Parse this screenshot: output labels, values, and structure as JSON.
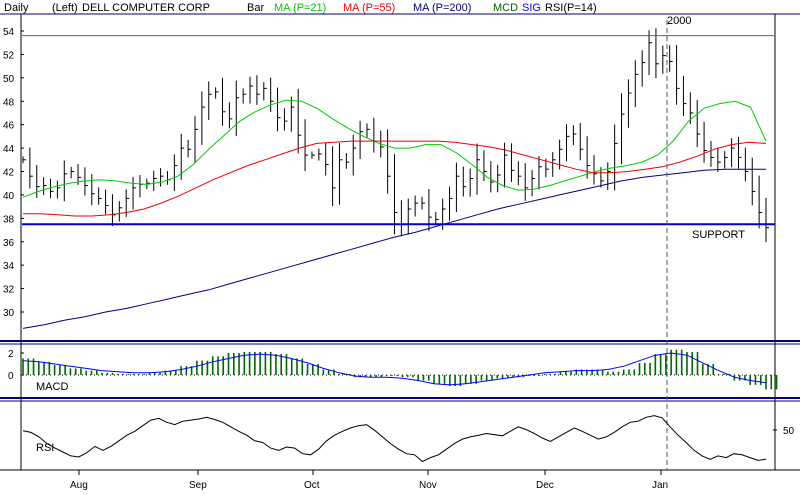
{
  "header": {
    "period": "Daily",
    "scale_side": "(Left)",
    "company": "DELL COMPUTER CORP",
    "bar_label": "Bar",
    "ma21_label": "MA (P=21)",
    "ma55_label": "MA (P=55)",
    "ma200_label": "MA (P=200)",
    "macd_label": "MCD",
    "sig_label": "SIG",
    "rsi_label": "RSI(P=14)"
  },
  "colors": {
    "bars": "#000000",
    "ma21": "#00cc00",
    "ma55": "#ee0000",
    "ma200": "#000080",
    "support": "#0000cc",
    "macd_hist": "#006600",
    "sig": "#0000ff",
    "rsi": "#000000",
    "panel_line": "#000080"
  },
  "chart_data": [
    {
      "type": "bar",
      "panel": "price",
      "ylim": [
        28,
        54
      ],
      "yticks": [
        30,
        32,
        34,
        36,
        38,
        40,
        42,
        44,
        46,
        48,
        50,
        52,
        54
      ],
      "xticks": [
        "Aug",
        "Sep",
        "Oct",
        "Nov",
        "Dec",
        "Jan"
      ],
      "year_marker": "2000",
      "annotations": [
        {
          "text": "SUPPORT",
          "value": 37.5
        }
      ],
      "top_line": 53.6,
      "closes": [
        43.0,
        41.6,
        40.7,
        40.8,
        40.3,
        40.6,
        41.8,
        42.0,
        41.5,
        40.8,
        40.1,
        39.7,
        39.1,
        38.3,
        38.9,
        39.7,
        40.6,
        40.9,
        41.0,
        41.4,
        41.6,
        41.3,
        42.5,
        44.0,
        43.9,
        45.6,
        47.5,
        48.6,
        48.8,
        47.1,
        46.5,
        48.3,
        48.6,
        49.3,
        48.6,
        49.1,
        48.0,
        46.6,
        46.3,
        47.5,
        45.1,
        43.4,
        43.4,
        43.5,
        42.6,
        40.6,
        43.0,
        42.8,
        44.0,
        45.4,
        45.6,
        44.6,
        44.1,
        41.6,
        38.5,
        37.5,
        38.8,
        39.3,
        39.3,
        38.1,
        37.9,
        38.8,
        39.7,
        41.6,
        40.7,
        41.4,
        43.0,
        42.0,
        41.1,
        41.7,
        43.4,
        42.1,
        41.6,
        40.6,
        41.4,
        42.4,
        42.2,
        43.0,
        43.9,
        45.0,
        45.2,
        43.9,
        42.5,
        41.8,
        41.2,
        42.0,
        44.4,
        46.9,
        48.7,
        50.3,
        51.3,
        53.0,
        51.2,
        51.9,
        51.4,
        49.1,
        47.8,
        47.0,
        45.2,
        43.8,
        43.2,
        42.8,
        43.2,
        44.0,
        43.2,
        42.0,
        40.3,
        38.5,
        37.2
      ],
      "series": [
        {
          "name": "MA (P=21)",
          "values": [
            39.8,
            40.3,
            40.7,
            41.0,
            41.2,
            41.3,
            41.2,
            41.0,
            40.9,
            41.1,
            41.6,
            42.6,
            43.9,
            45.1,
            46.3,
            47.1,
            47.7,
            48.1,
            48.0,
            47.4,
            46.5,
            45.7,
            45.0,
            44.4,
            44.0,
            44.0,
            44.3,
            44.3,
            43.6,
            42.6,
            41.5,
            40.8,
            40.4,
            40.5,
            40.8,
            41.2,
            41.6,
            42.0,
            42.3,
            42.5,
            42.8,
            43.4,
            44.6,
            46.3,
            47.4,
            47.8,
            48.0,
            47.5,
            44.6
          ]
        },
        {
          "name": "MA (P=55)",
          "values": [
            38.4,
            38.4,
            38.3,
            38.2,
            38.2,
            38.3,
            38.5,
            38.8,
            39.3,
            39.9,
            40.6,
            41.3,
            41.9,
            42.5,
            43.0,
            43.5,
            44.0,
            44.4,
            44.5,
            44.6,
            44.6,
            44.6,
            44.6,
            44.6,
            44.6,
            44.5,
            44.3,
            44.1,
            43.8,
            43.4,
            43.0,
            42.6,
            42.2,
            41.9,
            41.9,
            42.0,
            42.2,
            42.4,
            42.8,
            43.3,
            43.9,
            44.3,
            44.5,
            44.4
          ]
        },
        {
          "name": "MA (P=200)",
          "values": [
            28.6,
            28.9,
            29.3,
            29.6,
            30.0,
            30.3,
            30.7,
            31.1,
            31.5,
            31.9,
            32.4,
            32.9,
            33.4,
            33.9,
            34.4,
            34.9,
            35.4,
            35.9,
            36.4,
            36.8,
            37.3,
            37.8,
            38.3,
            38.8,
            39.2,
            39.6,
            40.0,
            40.4,
            40.8,
            41.2,
            41.5,
            41.7,
            41.9,
            42.1,
            42.2,
            42.2,
            42.2
          ]
        }
      ]
    },
    {
      "type": "bar",
      "panel": "macd",
      "label": "MACD",
      "yticks": [
        0,
        2
      ],
      "ylim": [
        -1.4,
        2.4
      ],
      "histogram": [
        1.5,
        1.2,
        0.9,
        0.6,
        0.4,
        0.2,
        0.1,
        0.1,
        0.2,
        0.4,
        0.8,
        1.3,
        1.7,
        2.0,
        2.1,
        2.1,
        1.9,
        1.5,
        1.0,
        0.5,
        0.1,
        -0.2,
        -0.2,
        -0.1,
        -0.2,
        -0.5,
        -0.8,
        -1.0,
        -0.8,
        -0.5,
        -0.3,
        -0.2,
        -0.1,
        0.1,
        0.3,
        0.5,
        0.5,
        0.3,
        0.5,
        1.1,
        1.9,
        2.3,
        2.1,
        1.0,
        0.1,
        -0.5,
        -0.9,
        -1.3
      ],
      "series": [
        {
          "name": "SIG",
          "values": [
            1.3,
            1.2,
            1.0,
            0.8,
            0.6,
            0.4,
            0.3,
            0.2,
            0.2,
            0.3,
            0.5,
            0.8,
            1.2,
            1.5,
            1.8,
            1.9,
            1.8,
            1.5,
            1.1,
            0.6,
            0.2,
            -0.1,
            -0.2,
            -0.2,
            -0.3,
            -0.5,
            -0.8,
            -0.9,
            -0.8,
            -0.6,
            -0.4,
            -0.2,
            0.0,
            0.2,
            0.3,
            0.4,
            0.4,
            0.5,
            0.8,
            1.3,
            1.8,
            2.0,
            1.8,
            1.1,
            0.4,
            -0.2,
            -0.5,
            -0.7
          ]
        }
      ]
    },
    {
      "type": "line",
      "panel": "rsi",
      "label": "RSI",
      "yticks": [
        50
      ],
      "ylim": [
        0,
        100
      ],
      "series": [
        {
          "name": "RSI(P=14)",
          "values": [
            63,
            60,
            52,
            40,
            32,
            25,
            18,
            16,
            24,
            35,
            28,
            35,
            45,
            55,
            62,
            72,
            82,
            85,
            78,
            74,
            80,
            82,
            84,
            87,
            83,
            78,
            70,
            62,
            55,
            45,
            42,
            32,
            28,
            34,
            32,
            22,
            20,
            30,
            45,
            55,
            62,
            68,
            72,
            74,
            64,
            52,
            40,
            30,
            22,
            20,
            8,
            15,
            20,
            30,
            40,
            48,
            52,
            55,
            58,
            56,
            54,
            62,
            70,
            65,
            58,
            50,
            44,
            52,
            60,
            68,
            62,
            55,
            48,
            52,
            60,
            70,
            78,
            80,
            87,
            90,
            86,
            70,
            55,
            42,
            28,
            18,
            12,
            18,
            15,
            22,
            20,
            15,
            10,
            12
          ]
        }
      ]
    }
  ]
}
